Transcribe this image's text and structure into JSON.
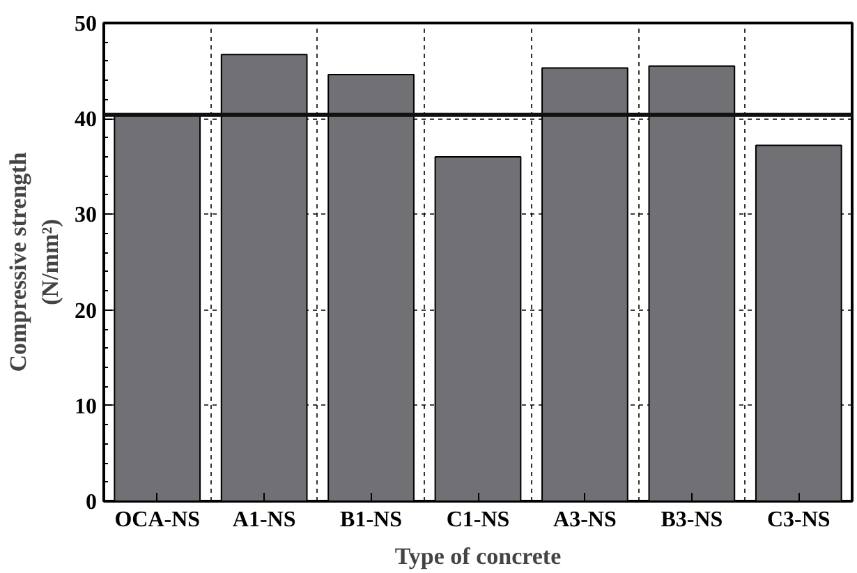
{
  "chart_data": {
    "type": "bar",
    "xlabel": "Type of concrete",
    "ylabel": "Compressive strength\n(N/mm²)",
    "categories": [
      "OCA-NS",
      "A1-NS",
      "B1-NS",
      "C1-NS",
      "A3-NS",
      "B3-NS",
      "C3-NS"
    ],
    "values": [
      40.3,
      46.7,
      44.6,
      36.0,
      45.3,
      45.5,
      37.2
    ],
    "color": "#707075",
    "ylim": [
      0,
      50
    ],
    "yticks": [
      0,
      10,
      20,
      30,
      40,
      50
    ],
    "grid": true,
    "ref_lines": [
      {
        "axis": "y",
        "value": 40.4,
        "color": "#111111",
        "line_style": "solid"
      }
    ]
  }
}
